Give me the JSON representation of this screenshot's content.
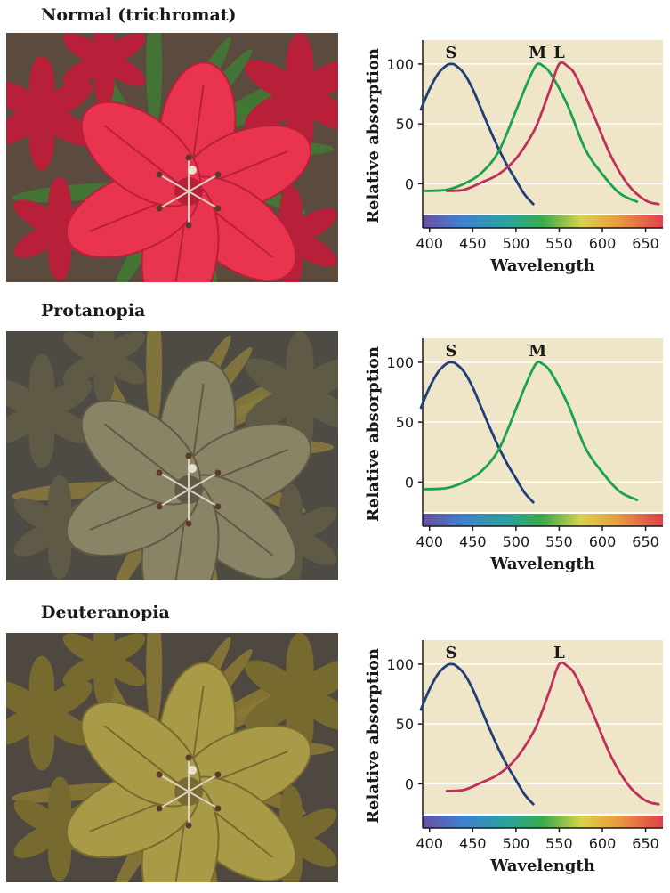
{
  "panels": [
    {
      "label": "Normal (trichromat)",
      "photo": {
        "petal": "#e8344f",
        "petal_dark": "#b8203a",
        "leaf": "#3f7a34",
        "bg": "#5b4a3e"
      }
    },
    {
      "label": "Protanopia",
      "photo": {
        "petal": "#8a8466",
        "petal_dark": "#5e5a45",
        "leaf": "#8a7a3c",
        "bg": "#4e4a44"
      }
    },
    {
      "label": "Deuteranopia",
      "photo": {
        "petal": "#a99a48",
        "petal_dark": "#776a2e",
        "leaf": "#8c7a34",
        "bg": "#4f4840"
      }
    }
  ],
  "colors": {
    "S": "#1f3f7a",
    "M": "#19a34a",
    "L": "#c0305a",
    "plot_bg": "#efe5c8",
    "grid": "#ffffff"
  },
  "chart_data": [
    {
      "type": "line",
      "xlabel": "Wavelength",
      "ylabel": "Relative absorption",
      "xlim": [
        392,
        670
      ],
      "ylim": [
        -25,
        120
      ],
      "xticks": [
        400,
        450,
        500,
        550,
        600,
        650
      ],
      "yticks": [
        0,
        50,
        100
      ],
      "grid": true,
      "series": [
        {
          "name": "S",
          "peak": 425,
          "x": [
            390,
            400,
            410,
            420,
            425,
            430,
            440,
            450,
            460,
            470,
            480,
            490,
            500,
            510,
            520
          ],
          "y": [
            62,
            79,
            92,
            99,
            100,
            99,
            92,
            79,
            62,
            45,
            29,
            15,
            3,
            -9,
            -17
          ]
        },
        {
          "name": "M",
          "peak": 525,
          "x": [
            395,
            420,
            440,
            460,
            480,
            500,
            510,
            520,
            525,
            530,
            540,
            560,
            580,
            600,
            620,
            640
          ],
          "y": [
            -6,
            -5,
            0,
            9,
            27,
            61,
            79,
            95,
            100,
            99,
            92,
            65,
            29,
            8,
            -8,
            -15
          ]
        },
        {
          "name": "L",
          "peak": 550,
          "x": [
            420,
            440,
            460,
            480,
            500,
            520,
            530,
            540,
            550,
            560,
            570,
            590,
            610,
            630,
            650,
            665
          ],
          "y": [
            -6,
            -5,
            1,
            8,
            21,
            43,
            60,
            80,
            100,
            98,
            89,
            57,
            23,
            -1,
            -14,
            -17
          ]
        }
      ]
    },
    {
      "type": "line",
      "xlabel": "Wavelength",
      "ylabel": "Relative absorption",
      "xlim": [
        392,
        670
      ],
      "ylim": [
        -25,
        120
      ],
      "xticks": [
        400,
        450,
        500,
        550,
        600,
        650
      ],
      "yticks": [
        0,
        50,
        100
      ],
      "grid": true,
      "series": [
        {
          "name": "S",
          "peak": 425,
          "x": [
            390,
            400,
            410,
            420,
            425,
            430,
            440,
            450,
            460,
            470,
            480,
            490,
            500,
            510,
            520
          ],
          "y": [
            62,
            79,
            92,
            99,
            100,
            99,
            92,
            79,
            62,
            45,
            29,
            15,
            3,
            -9,
            -17
          ]
        },
        {
          "name": "M",
          "peak": 525,
          "x": [
            395,
            420,
            440,
            460,
            480,
            500,
            510,
            520,
            525,
            530,
            540,
            560,
            580,
            600,
            620,
            640
          ],
          "y": [
            -6,
            -5,
            0,
            9,
            27,
            61,
            79,
            95,
            100,
            99,
            92,
            65,
            29,
            8,
            -8,
            -15
          ]
        }
      ]
    },
    {
      "type": "line",
      "xlabel": "Wavelength",
      "ylabel": "Relative absorption",
      "xlim": [
        392,
        670
      ],
      "ylim": [
        -25,
        120
      ],
      "xticks": [
        400,
        450,
        500,
        550,
        600,
        650
      ],
      "yticks": [
        0,
        50,
        100
      ],
      "grid": true,
      "series": [
        {
          "name": "S",
          "peak": 425,
          "x": [
            390,
            400,
            410,
            420,
            425,
            430,
            440,
            450,
            460,
            470,
            480,
            490,
            500,
            510,
            520
          ],
          "y": [
            62,
            79,
            92,
            99,
            100,
            99,
            92,
            79,
            62,
            45,
            29,
            15,
            3,
            -9,
            -17
          ]
        },
        {
          "name": "L",
          "peak": 550,
          "x": [
            420,
            440,
            460,
            480,
            500,
            520,
            530,
            540,
            550,
            560,
            570,
            590,
            610,
            630,
            650,
            665
          ],
          "y": [
            -6,
            -5,
            1,
            8,
            21,
            43,
            60,
            80,
            100,
            98,
            89,
            57,
            23,
            -1,
            -14,
            -17
          ]
        }
      ]
    }
  ]
}
